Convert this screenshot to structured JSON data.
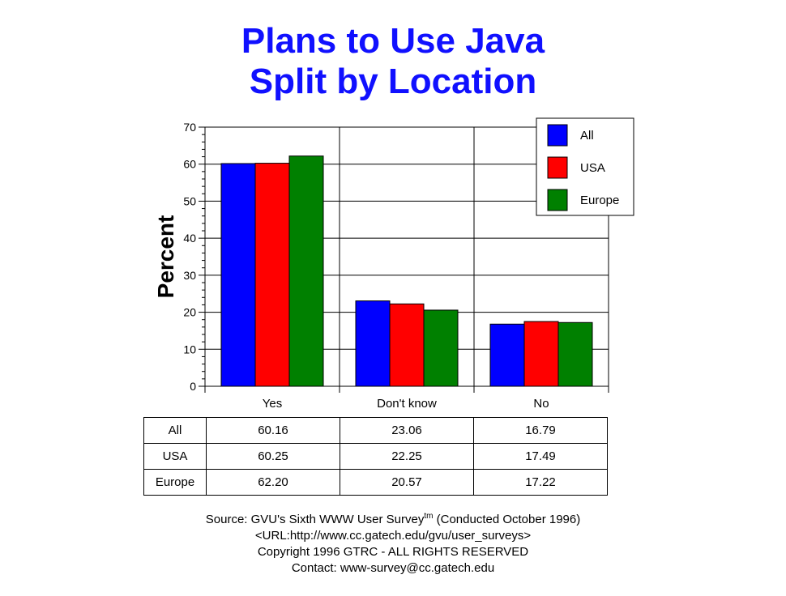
{
  "chart_data": {
    "type": "bar",
    "title": [
      "Plans to Use Java",
      "Split by Location"
    ],
    "ylabel": "Percent",
    "xlabel": "",
    "ylim": [
      0,
      70
    ],
    "yticks": [
      0,
      10,
      20,
      30,
      40,
      50,
      60,
      70
    ],
    "grid": true,
    "legend_position": "top-right",
    "categories": [
      "Yes",
      "Don't know",
      "No"
    ],
    "series": [
      {
        "name": "All",
        "color": "#0000ff",
        "values": [
          60.16,
          23.06,
          16.79
        ]
      },
      {
        "name": "USA",
        "color": "#ff0000",
        "values": [
          60.25,
          22.25,
          17.49
        ]
      },
      {
        "name": "Europe",
        "color": "#008000",
        "values": [
          62.2,
          20.57,
          17.22
        ]
      }
    ]
  },
  "table": {
    "rows": [
      {
        "label": "All",
        "cells": [
          "60.16",
          "23.06",
          "16.79"
        ]
      },
      {
        "label": "USA",
        "cells": [
          "60.25",
          "22.25",
          "17.49"
        ]
      },
      {
        "label": "Europe",
        "cells": [
          "62.20",
          "20.57",
          "17.22"
        ]
      }
    ]
  },
  "footer": {
    "source_prefix": "Source: GVU's Sixth WWW User Survey",
    "source_sup": "tm",
    "source_suffix": "  (Conducted October 1996)",
    "url": "<URL:http://www.cc.gatech.edu/gvu/user_surveys>",
    "copyright": "Copyright 1996 GTRC -  ALL RIGHTS RESERVED",
    "contact": "Contact: www-survey@cc.gatech.edu"
  }
}
